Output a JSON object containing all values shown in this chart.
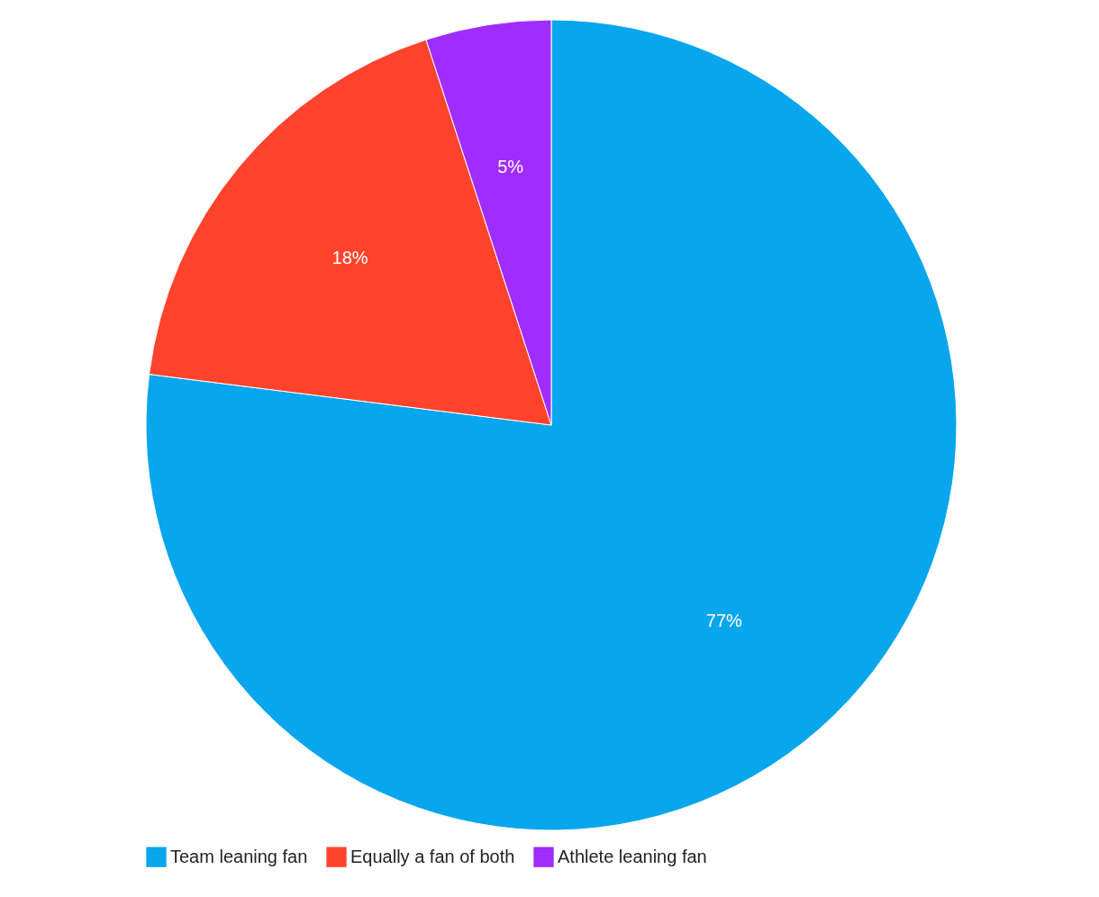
{
  "chart_data": {
    "type": "pie",
    "categories": [
      "Team leaning fan",
      "Equally a fan of both",
      "Athlete leaning fan"
    ],
    "values": [
      77,
      18,
      5
    ],
    "colors": [
      "#08a6ec",
      "#ff432c",
      "#a02cff"
    ],
    "value_labels": [
      "77%",
      "18%",
      "5%"
    ],
    "legend": "bottom"
  }
}
